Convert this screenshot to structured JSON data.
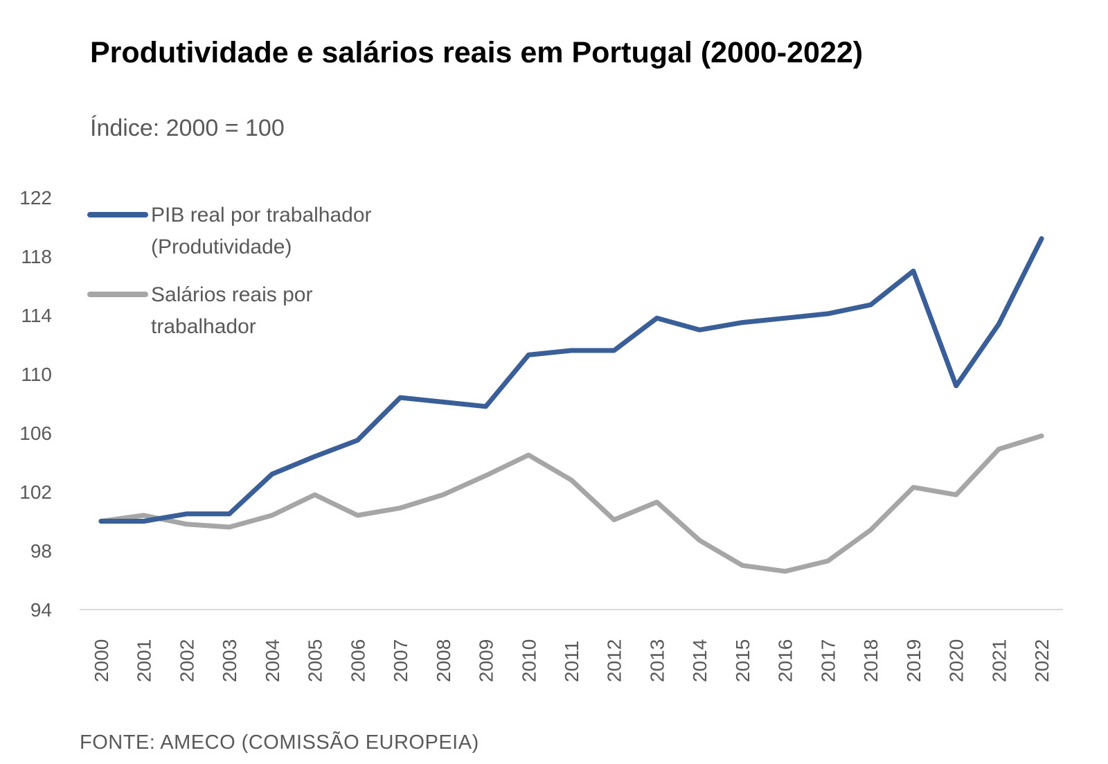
{
  "title": "Produtividade e salários reais em Portugal (2000-2022)",
  "subtitle": "Índice: 2000 = 100",
  "source": "FONTE: AMECO (COMISSÃO EUROPEIA)",
  "colors": {
    "pib": "#3A5E97",
    "salarios": "#A6A6A6",
    "axis": "#D9D9D9",
    "text": "#595959"
  },
  "chart_data": {
    "type": "line",
    "title": "Produtividade e salários reais em Portugal (2000-2022)",
    "subtitle": "Índice: 2000 = 100",
    "xlabel": "",
    "ylabel": "",
    "ylim": [
      94,
      122
    ],
    "yticks": [
      94,
      98,
      102,
      106,
      110,
      114,
      118,
      122
    ],
    "grid": false,
    "legend_position": "top-left",
    "x": [
      "2000",
      "2001",
      "2002",
      "2003",
      "2004",
      "2005",
      "2006",
      "2007",
      "2008",
      "2009",
      "2010",
      "2011",
      "2012",
      "2013",
      "2014",
      "2015",
      "2016",
      "2017",
      "2018",
      "2019",
      "2020",
      "2021",
      "2022"
    ],
    "series": [
      {
        "name": "PIB real por trabalhador (Produtividade)",
        "legend_lines": [
          "PIB real por trabalhador",
          "(Produtividade)"
        ],
        "color": "#3A5E97",
        "values": [
          100.0,
          100.0,
          100.5,
          100.5,
          103.2,
          104.4,
          105.5,
          108.4,
          108.1,
          107.8,
          111.3,
          111.6,
          111.6,
          113.8,
          113.0,
          113.5,
          113.8,
          114.1,
          114.7,
          117.0,
          109.2,
          113.4,
          119.2
        ]
      },
      {
        "name": "Salários reais por trabalhador",
        "legend_lines": [
          "Salários reais por",
          "trabalhador"
        ],
        "color": "#A6A6A6",
        "values": [
          100.0,
          100.4,
          99.8,
          99.6,
          100.4,
          101.8,
          100.4,
          100.9,
          101.8,
          103.1,
          104.5,
          102.8,
          100.1,
          101.3,
          98.7,
          97.0,
          96.6,
          97.3,
          99.4,
          102.3,
          101.8,
          104.9,
          105.8
        ]
      }
    ]
  }
}
